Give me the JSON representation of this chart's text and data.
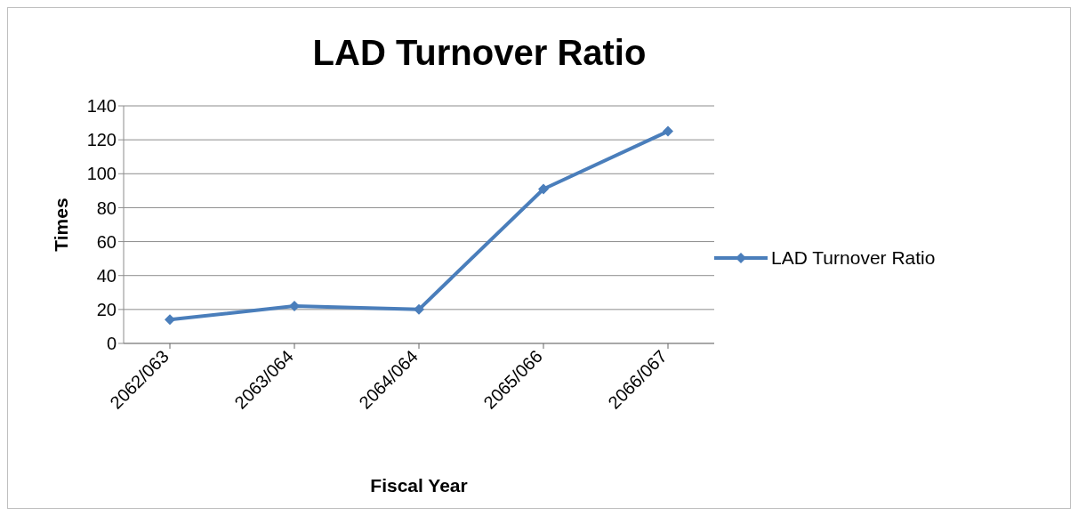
{
  "chart_data": {
    "type": "line",
    "title": "LAD Turnover Ratio",
    "xlabel": "Fiscal Year",
    "ylabel": "Times",
    "categories": [
      "2062/063",
      "2063/064",
      "2064/064",
      "2065/066",
      "2066/067"
    ],
    "series": [
      {
        "name": "LAD Turnover Ratio",
        "color": "#4a7ebb",
        "values": [
          14,
          22,
          20,
          91,
          125
        ]
      }
    ],
    "ylim": [
      0,
      140
    ],
    "yticks": [
      0,
      20,
      40,
      60,
      80,
      100,
      120,
      140
    ],
    "grid": "y",
    "legend": "right",
    "marker": "diamond",
    "line_style": "solid"
  }
}
